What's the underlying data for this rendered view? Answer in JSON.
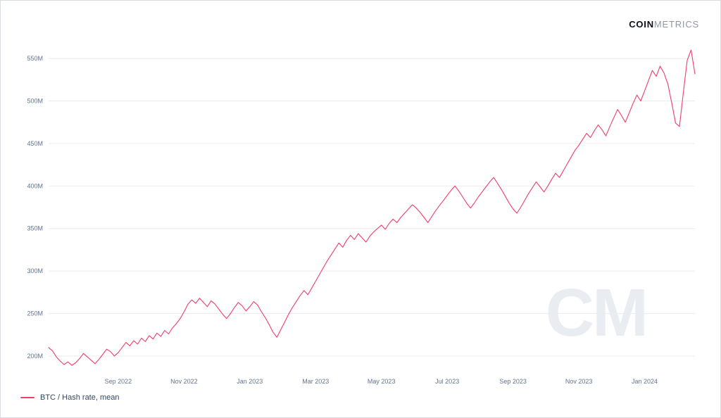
{
  "header": {
    "brand_bold": "COIN",
    "brand_light": "METRICS"
  },
  "watermark": "CM",
  "legend": {
    "label": "BTC / Hash rate, mean",
    "color": "#ee3e6d"
  },
  "chart_data": {
    "type": "line",
    "title": "BTC / Hash rate, mean",
    "unit": "M (hash rate, mean)",
    "grid": "horizontal",
    "legend_position": "bottom-left",
    "ylim": [
      185,
      570
    ],
    "y_ticks": [
      200,
      250,
      300,
      350,
      400,
      450,
      500,
      550
    ],
    "y_tick_suffix": "M",
    "x_tick_labels": [
      "Sep 2022",
      "Nov 2022",
      "Jan 2023",
      "Mar 2023",
      "May 2023",
      "Jul 2023",
      "Sep 2023",
      "Nov 2023",
      "Jan 2024"
    ],
    "x_tick_indices": [
      18,
      35,
      52,
      69,
      86,
      103,
      120,
      137,
      154
    ],
    "series": [
      {
        "name": "BTC / Hash rate, mean",
        "color": "#ee3e6d",
        "values_millions": [
          210,
          206,
          199,
          194,
          190,
          193,
          189,
          192,
          197,
          203,
          199,
          195,
          191,
          196,
          202,
          208,
          205,
          200,
          204,
          210,
          216,
          212,
          218,
          214,
          221,
          217,
          224,
          220,
          227,
          223,
          230,
          226,
          233,
          238,
          244,
          252,
          261,
          266,
          262,
          268,
          263,
          258,
          265,
          261,
          255,
          249,
          244,
          250,
          257,
          263,
          259,
          253,
          258,
          264,
          260,
          252,
          245,
          237,
          228,
          222,
          231,
          240,
          249,
          257,
          264,
          271,
          277,
          272,
          280,
          288,
          296,
          304,
          312,
          319,
          326,
          333,
          328,
          336,
          342,
          337,
          344,
          339,
          334,
          341,
          346,
          350,
          354,
          349,
          356,
          361,
          357,
          363,
          368,
          373,
          378,
          374,
          369,
          363,
          357,
          364,
          371,
          377,
          383,
          389,
          395,
          400,
          394,
          387,
          380,
          374,
          380,
          387,
          393,
          399,
          405,
          410,
          403,
          396,
          388,
          380,
          373,
          368,
          375,
          383,
          391,
          398,
          405,
          399,
          393,
          400,
          408,
          415,
          410,
          418,
          426,
          434,
          442,
          448,
          455,
          462,
          457,
          465,
          472,
          466,
          459,
          470,
          480,
          490,
          483,
          475,
          486,
          497,
          507,
          500,
          512,
          524,
          536,
          529,
          541,
          533,
          520,
          498,
          474,
          470,
          510,
          548,
          560,
          532
        ]
      }
    ],
    "axis_text_color": "#64748b",
    "gridline_color": "#e9edf1"
  }
}
